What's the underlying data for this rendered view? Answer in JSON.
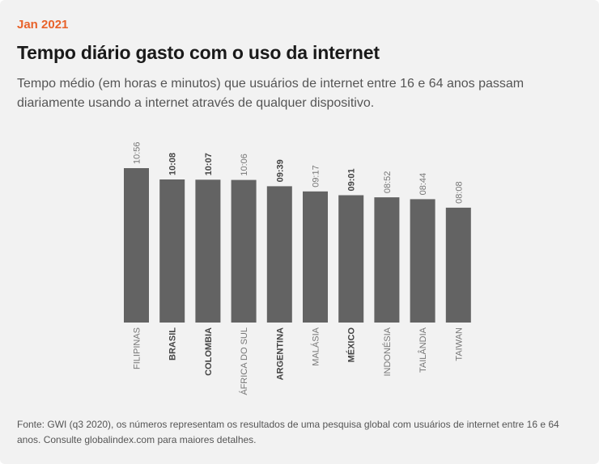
{
  "header": {
    "date": "Jan 2021",
    "title": "Tempo diário gasto com o uso da internet",
    "subtitle": "Tempo médio (em horas e minutos) que usuários de internet entre 16 e 64 anos passam diariamente usando a internet através de qualquer dispositivo."
  },
  "chart_data": {
    "type": "bar",
    "categories": [
      "FILIPINAS",
      "BRASIL",
      "COLOMBIA",
      "ÁFRICA DO SUL",
      "ARGENTINA",
      "MALÁSIA",
      "MÉXICO",
      "INDONÉSIA",
      "TAILÂNDIA",
      "TAIWAN"
    ],
    "labels": [
      "10:56",
      "10:08",
      "10:07",
      "10:06",
      "09:39",
      "09:17",
      "09:01",
      "08:52",
      "08:44",
      "08:08"
    ],
    "values": [
      10.933,
      10.133,
      10.117,
      10.1,
      9.65,
      9.283,
      9.017,
      8.867,
      8.733,
      8.133
    ],
    "highlighted": [
      false,
      true,
      true,
      false,
      true,
      false,
      true,
      false,
      false,
      false
    ],
    "bar_color": "#636363",
    "ylim": [
      0,
      10.933
    ],
    "grid": false
  },
  "footer": {
    "source": "Fonte: GWI (q3 2020), os números representam os resultados de uma pesquisa global com usuários de internet entre 16 e 64 anos. Consulte globalindex.com para maiores detalhes."
  },
  "colors": {
    "accent": "#e8632b",
    "background": "#f2f2f2",
    "bar": "#636363"
  }
}
